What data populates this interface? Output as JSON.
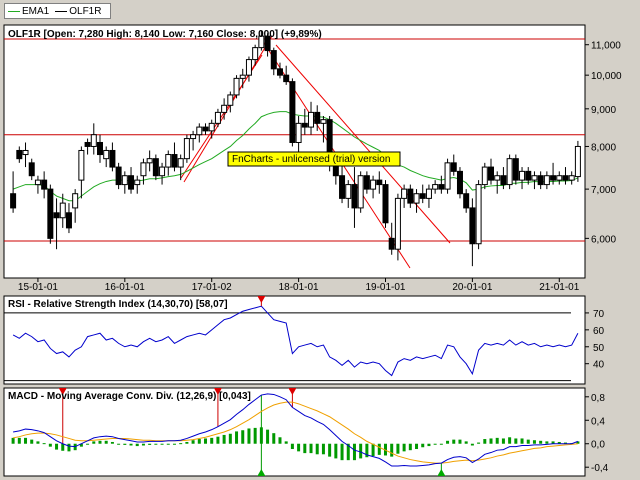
{
  "legend": [
    {
      "name": "EMA1",
      "color": "#22aa22"
    },
    {
      "name": "OLF1R",
      "color": "#000000"
    }
  ],
  "watermark": "FnCharts - unlicensed (trial) version",
  "chart_data": [
    {
      "type": "candlestick",
      "title": "OLF1R [Open: 7,280  High: 8,140  Low: 7,160  Close: 8,000] (+9,89%)",
      "y_scale": "log",
      "ylim": [
        5.3,
        11.7
      ],
      "yticks": [
        {
          "v": 6,
          "label": "6,000"
        },
        {
          "v": 7,
          "label": "7,000"
        },
        {
          "v": 8,
          "label": "8,000"
        },
        {
          "v": 9,
          "label": "9,000"
        },
        {
          "v": 10,
          "label": "10,000"
        },
        {
          "v": 11,
          "label": "11,000"
        }
      ],
      "xticks": [
        {
          "i": 4,
          "label": "15-01-01"
        },
        {
          "i": 18,
          "label": "16-01-01"
        },
        {
          "i": 32,
          "label": "17-01-02"
        },
        {
          "i": 46,
          "label": "18-01-01"
        },
        {
          "i": 60,
          "label": "19-01-01"
        },
        {
          "i": 74,
          "label": "20-01-01"
        },
        {
          "i": 88,
          "label": "21-01-01"
        }
      ],
      "hlines": [
        11.2,
        8.3,
        5.95
      ],
      "candles": [
        [
          6.9,
          7.4,
          6.5,
          6.6
        ],
        [
          7.9,
          8.0,
          7.6,
          7.7
        ],
        [
          7.8,
          8.1,
          7.5,
          7.9
        ],
        [
          7.6,
          7.7,
          7.2,
          7.3
        ],
        [
          7.1,
          7.3,
          6.9,
          7.2
        ],
        [
          7.2,
          7.4,
          6.8,
          7.0
        ],
        [
          7.0,
          7.1,
          5.9,
          6.0
        ],
        [
          6.5,
          6.8,
          5.8,
          6.4
        ],
        [
          6.4,
          6.9,
          6.2,
          6.7
        ],
        [
          6.5,
          6.7,
          6.1,
          6.2
        ],
        [
          6.6,
          7.0,
          6.3,
          6.9
        ],
        [
          7.2,
          8.0,
          6.8,
          7.9
        ],
        [
          8.1,
          8.2,
          7.8,
          8.0
        ],
        [
          8.0,
          8.6,
          7.8,
          8.3
        ],
        [
          8.1,
          8.3,
          7.6,
          7.8
        ],
        [
          7.7,
          8.0,
          7.5,
          7.9
        ],
        [
          7.9,
          8.1,
          7.4,
          7.5
        ],
        [
          7.5,
          7.6,
          7.0,
          7.1
        ],
        [
          7.1,
          7.4,
          6.9,
          7.3
        ],
        [
          7.3,
          7.5,
          6.9,
          7.0
        ],
        [
          7.1,
          7.3,
          6.9,
          7.2
        ],
        [
          7.3,
          7.7,
          7.1,
          7.6
        ],
        [
          7.6,
          7.9,
          7.4,
          7.7
        ],
        [
          7.7,
          7.8,
          7.2,
          7.3
        ],
        [
          7.3,
          7.6,
          7.1,
          7.5
        ],
        [
          7.5,
          7.9,
          7.3,
          7.8
        ],
        [
          7.8,
          8.1,
          7.4,
          7.5
        ],
        [
          7.5,
          7.8,
          7.2,
          7.7
        ],
        [
          7.7,
          8.3,
          7.6,
          8.2
        ],
        [
          8.2,
          8.4,
          7.9,
          8.3
        ],
        [
          8.3,
          8.6,
          8.1,
          8.5
        ],
        [
          8.5,
          8.6,
          8.3,
          8.4
        ],
        [
          8.4,
          8.7,
          8.2,
          8.6
        ],
        [
          8.6,
          9.0,
          8.5,
          8.9
        ],
        [
          8.9,
          9.3,
          8.7,
          9.1
        ],
        [
          9.1,
          9.5,
          8.9,
          9.4
        ],
        [
          9.4,
          10.0,
          9.3,
          9.9
        ],
        [
          9.9,
          10.2,
          9.6,
          10.0
        ],
        [
          10.0,
          10.6,
          9.8,
          10.5
        ],
        [
          10.5,
          11.0,
          10.3,
          10.9
        ],
        [
          10.9,
          11.5,
          10.8,
          11.3
        ],
        [
          11.3,
          11.4,
          10.6,
          10.8
        ],
        [
          10.8,
          10.9,
          10.0,
          10.2
        ],
        [
          10.2,
          10.4,
          9.9,
          10.0
        ],
        [
          10.0,
          10.3,
          9.7,
          9.8
        ],
        [
          9.8,
          9.9,
          8.0,
          8.1
        ],
        [
          8.1,
          8.8,
          7.8,
          8.6
        ],
        [
          8.6,
          9.0,
          8.3,
          8.5
        ],
        [
          8.5,
          9.2,
          8.3,
          8.9
        ],
        [
          8.9,
          9.1,
          8.4,
          8.6
        ],
        [
          8.6,
          8.8,
          8.1,
          8.7
        ],
        [
          8.7,
          8.8,
          7.4,
          7.6
        ],
        [
          7.6,
          7.8,
          7.1,
          7.3
        ],
        [
          7.3,
          7.6,
          6.7,
          6.8
        ],
        [
          6.8,
          7.2,
          6.6,
          7.1
        ],
        [
          7.1,
          7.5,
          6.2,
          6.6
        ],
        [
          6.6,
          7.4,
          6.5,
          7.3
        ],
        [
          7.3,
          7.4,
          6.9,
          7.0
        ],
        [
          7.0,
          7.3,
          6.8,
          7.2
        ],
        [
          7.2,
          7.4,
          6.9,
          7.1
        ],
        [
          7.1,
          7.2,
          6.2,
          6.3
        ],
        [
          6.0,
          6.3,
          5.7,
          5.8
        ],
        [
          5.8,
          6.9,
          5.6,
          6.8
        ],
        [
          6.8,
          7.1,
          6.6,
          7.0
        ],
        [
          7.0,
          7.1,
          6.6,
          6.7
        ],
        [
          6.7,
          7.0,
          6.5,
          6.9
        ],
        [
          6.9,
          7.1,
          6.7,
          6.8
        ],
        [
          6.8,
          7.1,
          6.6,
          7.0
        ],
        [
          7.0,
          7.2,
          6.9,
          7.1
        ],
        [
          7.1,
          7.3,
          6.9,
          7.0
        ],
        [
          7.0,
          7.7,
          6.9,
          7.6
        ],
        [
          7.6,
          7.8,
          7.3,
          7.4
        ],
        [
          7.4,
          7.5,
          6.8,
          6.9
        ],
        [
          6.9,
          7.0,
          6.5,
          6.6
        ],
        [
          6.6,
          6.8,
          5.5,
          5.9
        ],
        [
          5.9,
          7.2,
          5.8,
          7.1
        ],
        [
          7.1,
          7.6,
          7.0,
          7.5
        ],
        [
          7.5,
          7.7,
          7.1,
          7.2
        ],
        [
          7.2,
          7.4,
          6.9,
          7.3
        ],
        [
          7.3,
          7.5,
          7.0,
          7.1
        ],
        [
          7.1,
          7.8,
          7.0,
          7.7
        ],
        [
          7.7,
          7.8,
          7.1,
          7.2
        ],
        [
          7.2,
          7.5,
          7.0,
          7.4
        ],
        [
          7.4,
          7.5,
          7.1,
          7.2
        ],
        [
          7.2,
          7.4,
          7.0,
          7.3
        ],
        [
          7.3,
          7.4,
          7.0,
          7.1
        ],
        [
          7.1,
          7.4,
          7.0,
          7.3
        ],
        [
          7.3,
          7.6,
          7.1,
          7.2
        ],
        [
          7.2,
          7.4,
          7.1,
          7.3
        ],
        [
          7.3,
          7.5,
          7.1,
          7.2
        ],
        [
          7.2,
          7.4,
          7.1,
          7.3
        ],
        [
          7.28,
          8.14,
          7.16,
          8.0
        ]
      ],
      "ema": [
        7.0,
        7.05,
        7.1,
        7.1,
        7.1,
        7.08,
        6.95,
        6.85,
        6.8,
        6.75,
        6.75,
        6.85,
        6.95,
        7.05,
        7.12,
        7.17,
        7.2,
        7.2,
        7.2,
        7.18,
        7.18,
        7.2,
        7.23,
        7.23,
        7.25,
        7.28,
        7.3,
        7.33,
        7.4,
        7.48,
        7.56,
        7.63,
        7.7,
        7.8,
        7.9,
        8.0,
        8.15,
        8.28,
        8.45,
        8.6,
        8.78,
        8.85,
        8.9,
        8.92,
        8.92,
        8.85,
        8.82,
        8.8,
        8.8,
        8.78,
        8.77,
        8.7,
        8.6,
        8.48,
        8.36,
        8.24,
        8.15,
        8.06,
        7.98,
        7.9,
        7.78,
        7.62,
        7.55,
        7.5,
        7.42,
        7.36,
        7.3,
        7.26,
        7.23,
        7.2,
        7.24,
        7.26,
        7.22,
        7.14,
        6.98,
        7.0,
        7.05,
        7.07,
        7.08,
        7.08,
        7.13,
        7.13,
        7.15,
        7.15,
        7.17,
        7.16,
        7.17,
        7.17,
        7.18,
        7.18,
        7.19,
        7.25
      ]
    },
    {
      "type": "line",
      "title": "RSI - Relative Strength Index (14,30,70) [58,07]",
      "ylim": [
        28,
        80
      ],
      "yticks": [
        40,
        50,
        60,
        70
      ],
      "hlines": [
        70,
        30
      ],
      "values": [
        57,
        55,
        58,
        56,
        53,
        54,
        49,
        46,
        47,
        44,
        48,
        50,
        56,
        57,
        58,
        54,
        55,
        52,
        50,
        51,
        50,
        53,
        55,
        53,
        54,
        56,
        52,
        54,
        56,
        57,
        58,
        57,
        60,
        63,
        66,
        67,
        69,
        71,
        72,
        73,
        74,
        70,
        66,
        65,
        64,
        46,
        50,
        51,
        52,
        50,
        51,
        44,
        42,
        39,
        42,
        38,
        41,
        40,
        41,
        40,
        36,
        33,
        41,
        43,
        42,
        44,
        43,
        44,
        45,
        43,
        51,
        50,
        44,
        40,
        34,
        48,
        52,
        51,
        52,
        51,
        54,
        51,
        53,
        51,
        52,
        50,
        51,
        50,
        51,
        50,
        51,
        58
      ]
    },
    {
      "type": "line",
      "title": "MACD - Moving Average Conv. Div. (12,26,9) [0,043]",
      "ylim": [
        -0.55,
        0.95
      ],
      "yticks": [
        {
          "v": -0.4,
          "label": "-0,4"
        },
        {
          "v": 0.0,
          "label": "0,0"
        },
        {
          "v": 0.4,
          "label": "0,4"
        },
        {
          "v": 0.8,
          "label": "0,8"
        }
      ],
      "macd": [
        0.2,
        0.22,
        0.25,
        0.24,
        0.22,
        0.19,
        0.12,
        0.05,
        0.0,
        -0.04,
        -0.05,
        0.0,
        0.05,
        0.1,
        0.12,
        0.13,
        0.12,
        0.09,
        0.07,
        0.05,
        0.03,
        0.03,
        0.04,
        0.04,
        0.04,
        0.05,
        0.05,
        0.06,
        0.09,
        0.13,
        0.17,
        0.2,
        0.24,
        0.29,
        0.35,
        0.41,
        0.5,
        0.58,
        0.67,
        0.75,
        0.83,
        0.85,
        0.84,
        0.8,
        0.75,
        0.62,
        0.55,
        0.48,
        0.44,
        0.38,
        0.33,
        0.24,
        0.14,
        0.04,
        -0.03,
        -0.11,
        -0.14,
        -0.19,
        -0.22,
        -0.25,
        -0.31,
        -0.38,
        -0.38,
        -0.37,
        -0.38,
        -0.38,
        -0.37,
        -0.36,
        -0.34,
        -0.33,
        -0.27,
        -0.23,
        -0.22,
        -0.24,
        -0.32,
        -0.26,
        -0.18,
        -0.15,
        -0.11,
        -0.1,
        -0.05,
        -0.05,
        -0.03,
        -0.03,
        -0.02,
        -0.02,
        -0.01,
        0.0,
        0.0,
        0.0,
        0.0,
        0.04
      ],
      "signal": [
        0.1,
        0.12,
        0.15,
        0.17,
        0.18,
        0.18,
        0.17,
        0.15,
        0.12,
        0.09,
        0.06,
        0.05,
        0.05,
        0.06,
        0.07,
        0.08,
        0.09,
        0.09,
        0.09,
        0.08,
        0.07,
        0.06,
        0.06,
        0.05,
        0.05,
        0.05,
        0.05,
        0.05,
        0.06,
        0.07,
        0.09,
        0.11,
        0.14,
        0.17,
        0.2,
        0.24,
        0.29,
        0.35,
        0.41,
        0.48,
        0.55,
        0.61,
        0.66,
        0.69,
        0.71,
        0.71,
        0.68,
        0.64,
        0.6,
        0.56,
        0.51,
        0.46,
        0.39,
        0.32,
        0.25,
        0.17,
        0.11,
        0.04,
        -0.01,
        -0.06,
        -0.11,
        -0.16,
        -0.21,
        -0.24,
        -0.27,
        -0.29,
        -0.31,
        -0.32,
        -0.33,
        -0.33,
        -0.32,
        -0.3,
        -0.29,
        -0.28,
        -0.29,
        -0.28,
        -0.26,
        -0.24,
        -0.21,
        -0.19,
        -0.16,
        -0.14,
        -0.12,
        -0.1,
        -0.08,
        -0.07,
        -0.05,
        -0.04,
        -0.03,
        -0.02,
        -0.01,
        0.0
      ],
      "histogram_color": "#009900",
      "markers": [
        {
          "i": 8,
          "dir": "down"
        },
        {
          "i": 33,
          "dir": "down"
        },
        {
          "i": 40,
          "dir": "up"
        },
        {
          "i": 45,
          "dir": "down"
        },
        {
          "i": 69,
          "dir": "up"
        }
      ],
      "rsi_markers": [
        {
          "i": 40,
          "dir": "down"
        }
      ]
    }
  ]
}
